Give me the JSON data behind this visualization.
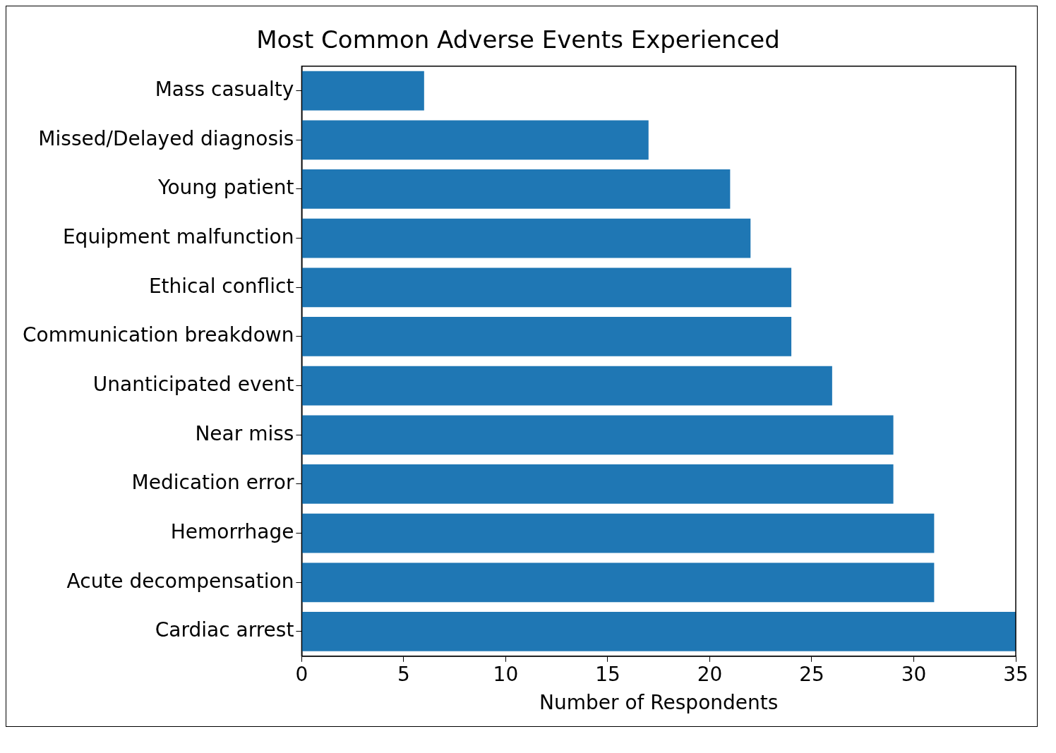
{
  "chart_data": {
    "type": "bar",
    "orientation": "horizontal",
    "title": "Most Common Adverse Events Experienced",
    "xlabel": "Number of Respondents",
    "categories": [
      "Mass casualty",
      "Missed/Delayed diagnosis",
      "Young patient",
      "Equipment malfunction",
      "Ethical conflict",
      "Communication breakdown",
      "Unanticipated event",
      "Near miss",
      "Medication error",
      "Hemorrhage",
      "Acute decompensation",
      "Cardiac arrest"
    ],
    "values": [
      6,
      17,
      21,
      22,
      24,
      24,
      26,
      29,
      29,
      31,
      31,
      35
    ],
    "color": "#1f77b4",
    "xlim": [
      0,
      35
    ],
    "xticks": [
      0,
      5,
      10,
      15,
      20,
      25,
      30,
      35
    ],
    "grid": false,
    "legend": false
  }
}
